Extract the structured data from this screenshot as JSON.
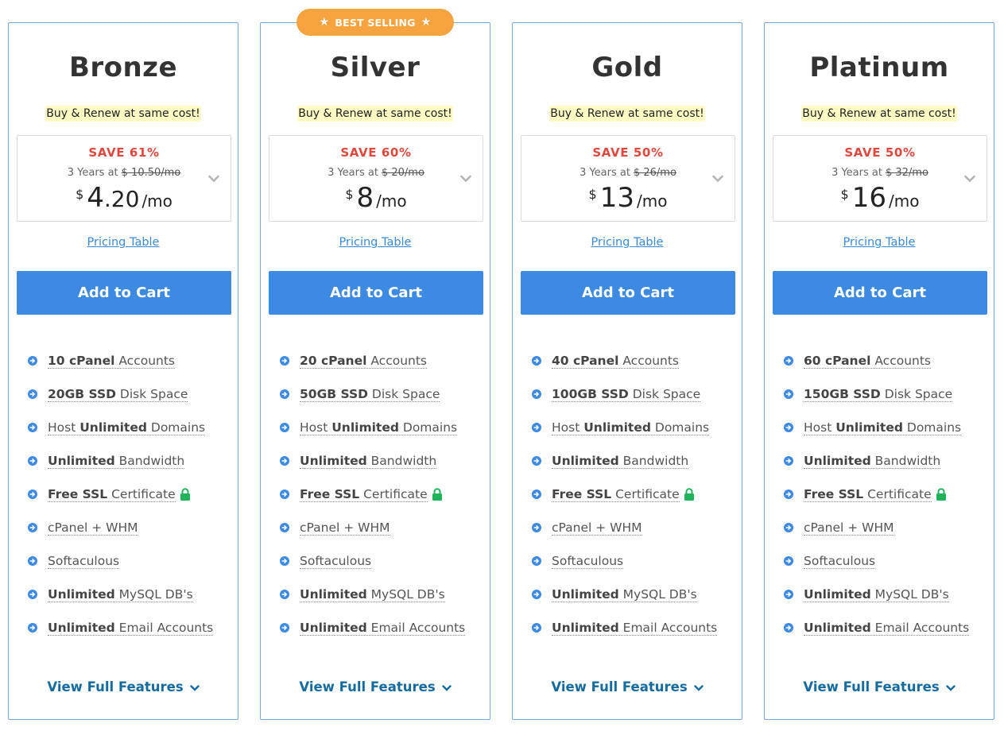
{
  "colors": {
    "accent": "#3d8ae2",
    "save_red": "#e0483e",
    "badge_orange": "#f7a440",
    "link_blue": "#3a8ad8",
    "view_full_blue": "#136b9e",
    "lock_green": "#21b35b",
    "tagline_highlight": "#fffbc4"
  },
  "badge": {
    "label": "BEST SELLING",
    "icon": "star-icon"
  },
  "plans": [
    {
      "name": "Bronze",
      "tagline": "Buy & Renew at same cost!",
      "save": "SAVE 61%",
      "term": "3 Years at",
      "old_price": "$ 10.50/mo",
      "currency": "$",
      "price": "4",
      "price_cents": ".20",
      "unit": "/mo",
      "pricing_link": "Pricing Table",
      "cart_label": "Add to Cart",
      "features": [
        {
          "pre": "",
          "bold": "10 cPanel",
          "post": " Accounts"
        },
        {
          "pre": "",
          "bold": "20GB SSD",
          "post": " Disk Space"
        },
        {
          "pre": "Host ",
          "bold": "Unlimited",
          "post": " Domains"
        },
        {
          "pre": "",
          "bold": "Unlimited",
          "post": " Bandwidth"
        },
        {
          "pre": "",
          "bold": "Free SSL",
          "post": " Certificate"
        },
        {
          "pre": "cPanel + WHM",
          "bold": "",
          "post": ""
        },
        {
          "pre": "Softaculous",
          "bold": "",
          "post": ""
        },
        {
          "pre": "",
          "bold": "Unlimited",
          "post": " MySQL DB's"
        },
        {
          "pre": "",
          "bold": "Unlimited",
          "post": " Email Accounts"
        }
      ],
      "view_full": "View Full Features"
    },
    {
      "name": "Silver",
      "tagline": "Buy & Renew at same cost!",
      "save": "SAVE 60%",
      "term": "3 Years at",
      "old_price": "$ 20/mo",
      "currency": "$",
      "price": "8",
      "price_cents": "",
      "unit": "/mo",
      "pricing_link": "Pricing Table",
      "cart_label": "Add to Cart",
      "features": [
        {
          "pre": "",
          "bold": "20 cPanel",
          "post": " Accounts"
        },
        {
          "pre": "",
          "bold": "50GB SSD",
          "post": " Disk Space"
        },
        {
          "pre": "Host ",
          "bold": "Unlimited",
          "post": " Domains"
        },
        {
          "pre": "",
          "bold": "Unlimited",
          "post": " Bandwidth"
        },
        {
          "pre": "",
          "bold": "Free SSL",
          "post": " Certificate"
        },
        {
          "pre": "cPanel + WHM",
          "bold": "",
          "post": ""
        },
        {
          "pre": "Softaculous",
          "bold": "",
          "post": ""
        },
        {
          "pre": "",
          "bold": "Unlimited",
          "post": " MySQL DB's"
        },
        {
          "pre": "",
          "bold": "Unlimited",
          "post": " Email Accounts"
        }
      ],
      "view_full": "View Full Features"
    },
    {
      "name": "Gold",
      "tagline": "Buy & Renew at same cost!",
      "save": "SAVE 50%",
      "term": "3 Years at",
      "old_price": "$ 26/mo",
      "currency": "$",
      "price": "13",
      "price_cents": "",
      "unit": "/mo",
      "pricing_link": "Pricing Table",
      "cart_label": "Add to Cart",
      "features": [
        {
          "pre": "",
          "bold": "40 cPanel",
          "post": " Accounts"
        },
        {
          "pre": "",
          "bold": "100GB SSD",
          "post": " Disk Space"
        },
        {
          "pre": "Host ",
          "bold": "Unlimited",
          "post": " Domains"
        },
        {
          "pre": "",
          "bold": "Unlimited",
          "post": " Bandwidth"
        },
        {
          "pre": "",
          "bold": "Free SSL",
          "post": " Certificate"
        },
        {
          "pre": "cPanel + WHM",
          "bold": "",
          "post": ""
        },
        {
          "pre": "Softaculous",
          "bold": "",
          "post": ""
        },
        {
          "pre": "",
          "bold": "Unlimited",
          "post": " MySQL DB's"
        },
        {
          "pre": "",
          "bold": "Unlimited",
          "post": " Email Accounts"
        }
      ],
      "view_full": "View Full Features"
    },
    {
      "name": "Platinum",
      "tagline": "Buy & Renew at same cost!",
      "save": "SAVE 50%",
      "term": "3 Years at",
      "old_price": "$ 32/mo",
      "currency": "$",
      "price": "16",
      "price_cents": "",
      "unit": "/mo",
      "pricing_link": "Pricing Table",
      "cart_label": "Add to Cart",
      "features": [
        {
          "pre": "",
          "bold": "60 cPanel",
          "post": " Accounts"
        },
        {
          "pre": "",
          "bold": "150GB SSD",
          "post": " Disk Space"
        },
        {
          "pre": "Host ",
          "bold": "Unlimited",
          "post": " Domains"
        },
        {
          "pre": "",
          "bold": "Unlimited",
          "post": " Bandwidth"
        },
        {
          "pre": "",
          "bold": "Free SSL",
          "post": " Certificate"
        },
        {
          "pre": "cPanel + WHM",
          "bold": "",
          "post": ""
        },
        {
          "pre": "Softaculous",
          "bold": "",
          "post": ""
        },
        {
          "pre": "",
          "bold": "Unlimited",
          "post": " MySQL DB's"
        },
        {
          "pre": "",
          "bold": "Unlimited",
          "post": " Email Accounts"
        }
      ],
      "view_full": "View Full Features"
    }
  ]
}
